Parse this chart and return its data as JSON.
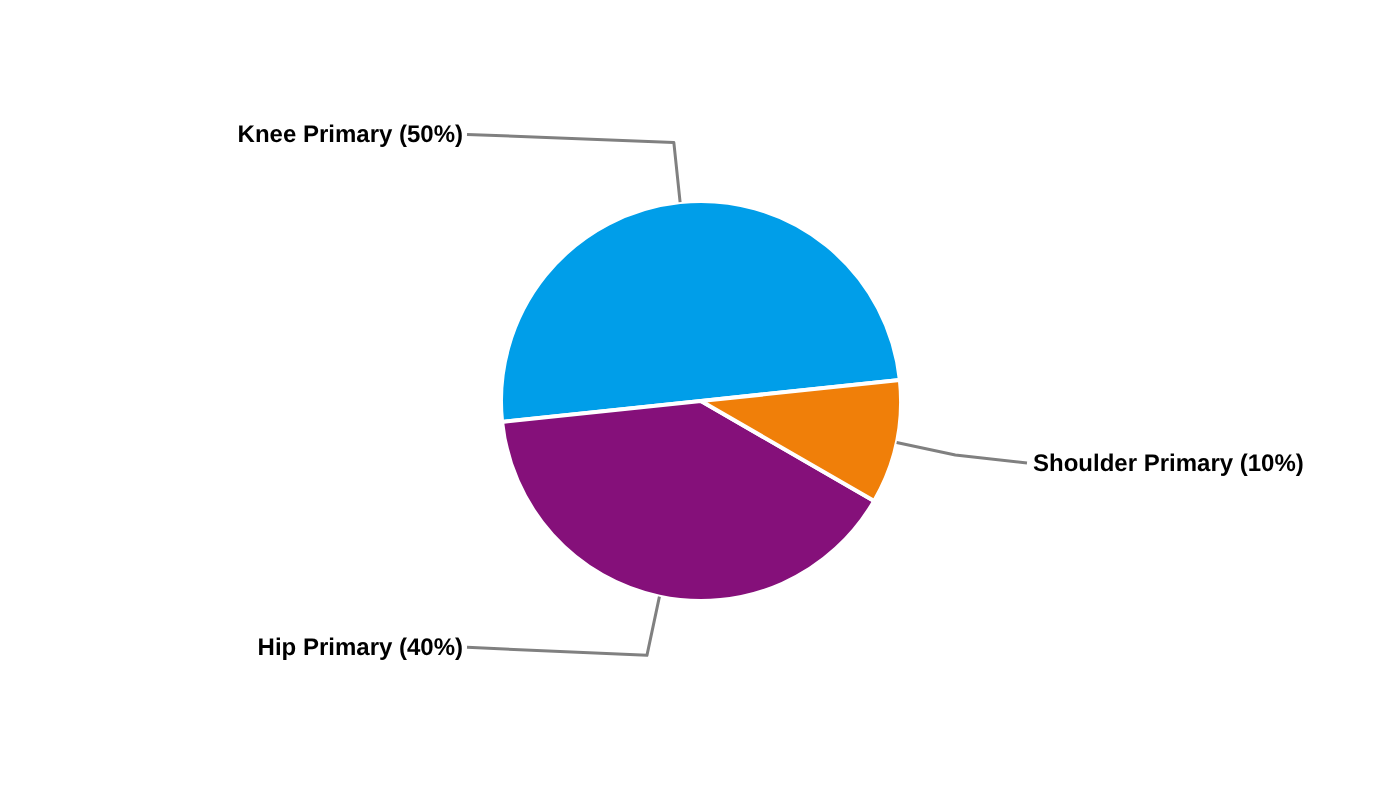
{
  "chart_data": {
    "type": "pie",
    "categories": [
      "Knee Primary (50%)",
      "Hip Primary (40%)",
      "Shoulder Primary (10%)"
    ],
    "values": [
      50,
      40,
      10
    ],
    "colors": [
      "#009ee9",
      "#85107a",
      "#f07f09"
    ]
  }
}
